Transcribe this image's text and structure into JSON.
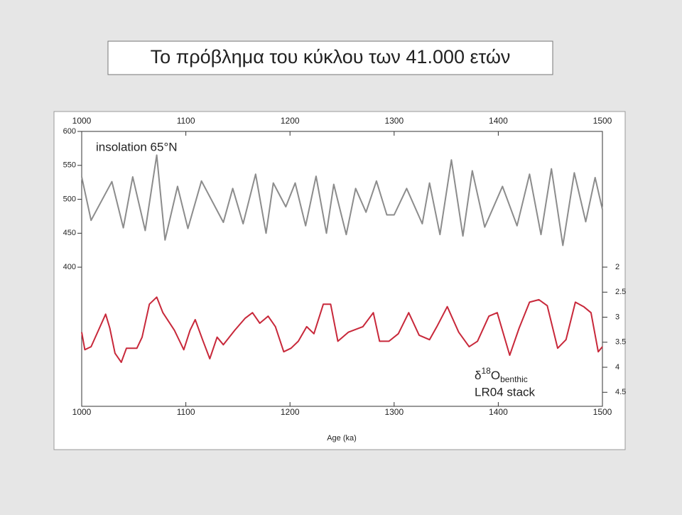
{
  "chart_data": {
    "type": "line",
    "title": "Το πρόβλημα του κύκλου των 41.000 ετών",
    "xlabel": "Age (ka)",
    "annotations": [
      "insolation 65°N",
      "LR04 stack"
    ],
    "delta_label": [
      "δ",
      "18",
      "O",
      "benthic"
    ],
    "xlim": [
      1000,
      1500
    ],
    "xticks": [
      1000,
      1100,
      1200,
      1300,
      1400,
      1500
    ],
    "ylim": [
      195,
      600
    ],
    "yticks": [
      400,
      450,
      500,
      550,
      600
    ],
    "y2lim": [
      4.78,
      -0.71
    ],
    "y2ticks": [
      2,
      2.5,
      3,
      3.5,
      4,
      4.5
    ],
    "series": [
      {
        "name": "insolation 65°N",
        "color": "#8c8c8c",
        "x": [
          1000,
          1009,
          1029,
          1040,
          1049,
          1061,
          1072,
          1080,
          1092,
          1102,
          1115,
          1136,
          1145,
          1155,
          1167,
          1177,
          1184,
          1196,
          1205,
          1215,
          1225,
          1235,
          1242,
          1254,
          1263,
          1273,
          1283,
          1293,
          1300,
          1312,
          1327,
          1334,
          1344,
          1355,
          1366,
          1375,
          1387,
          1404,
          1418,
          1430,
          1441,
          1451,
          1462,
          1473,
          1484,
          1493,
          1500
        ],
        "values": [
          533,
          469,
          526,
          458,
          533,
          454,
          565,
          440,
          519,
          457,
          527,
          466,
          516,
          464,
          537,
          450,
          524,
          489,
          524,
          461,
          534,
          450,
          522,
          448,
          516,
          481,
          527,
          477,
          477,
          516,
          464,
          524,
          448,
          558,
          446,
          542,
          459,
          519,
          461,
          537,
          448,
          545,
          432,
          539,
          467,
          532,
          485
        ]
      },
      {
        "name": "LR04 stack",
        "color": "#c8283a",
        "axis": "y2",
        "x": [
          1000,
          1003,
          1009,
          1017,
          1023,
          1027,
          1032,
          1038,
          1043,
          1053,
          1058,
          1065,
          1072,
          1078,
          1089,
          1098,
          1104,
          1109,
          1116,
          1123,
          1130,
          1136,
          1147,
          1157,
          1164,
          1171,
          1179,
          1186,
          1194,
          1201,
          1208,
          1216,
          1223,
          1232,
          1239,
          1246,
          1256,
          1270,
          1280,
          1286,
          1295,
          1304,
          1314,
          1324,
          1334,
          1341,
          1351,
          1362,
          1372,
          1380,
          1391,
          1399,
          1411,
          1420,
          1430,
          1439,
          1447,
          1457,
          1465,
          1474,
          1482,
          1489,
          1496,
          1500
        ],
        "values": [
          3.3,
          3.65,
          3.59,
          3.22,
          2.94,
          3.22,
          3.72,
          3.9,
          3.62,
          3.62,
          3.4,
          2.74,
          2.6,
          2.91,
          3.26,
          3.65,
          3.26,
          3.05,
          3.45,
          3.83,
          3.4,
          3.55,
          3.26,
          3.02,
          2.91,
          3.12,
          2.98,
          3.19,
          3.69,
          3.62,
          3.48,
          3.19,
          3.33,
          2.74,
          2.74,
          3.48,
          3.3,
          3.19,
          2.91,
          3.48,
          3.48,
          3.33,
          2.91,
          3.36,
          3.45,
          3.19,
          2.79,
          3.3,
          3.59,
          3.48,
          2.98,
          2.91,
          3.76,
          3.22,
          2.7,
          2.65,
          2.77,
          3.62,
          3.45,
          2.7,
          2.79,
          2.91,
          3.69,
          3.59
        ]
      }
    ]
  }
}
